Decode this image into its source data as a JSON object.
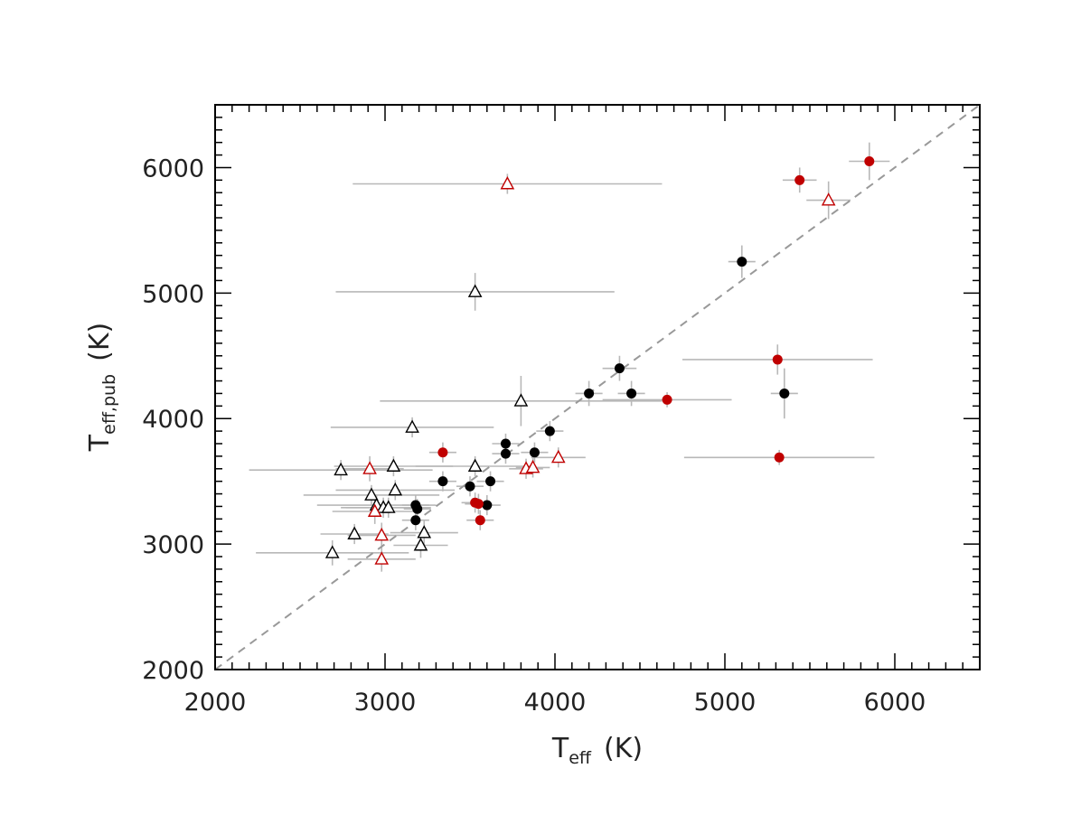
{
  "chart_data": {
    "type": "scatter",
    "title": "",
    "xlabel": "T",
    "xlabel_sub": "eff",
    "xlabel_unit": "(K)",
    "ylabel": "T",
    "ylabel_sub": "eff,pub",
    "ylabel_unit": "(K)",
    "xlim": [
      2000,
      6500
    ],
    "ylim": [
      2000,
      6500
    ],
    "xticks": [
      2000,
      3000,
      4000,
      5000,
      6000
    ],
    "yticks": [
      2000,
      3000,
      4000,
      5000,
      6000
    ],
    "grid": false,
    "reference_line": {
      "style": "dashed",
      "from": [
        2000,
        2000
      ],
      "to": [
        6500,
        6500
      ],
      "color": "#999999"
    },
    "colors": {
      "black": "#000000",
      "red": "#c00000",
      "errorbar": "#b8b8b8"
    },
    "series": [
      {
        "marker": "filled-circle",
        "color": "#000000",
        "points": [
          {
            "x": 5100,
            "y": 5250,
            "xerr": 80,
            "yerr": 130
          },
          {
            "x": 4380,
            "y": 4400,
            "xerr": 100,
            "yerr": 100
          },
          {
            "x": 4200,
            "y": 4200,
            "xerr": 80,
            "yerr": 100
          },
          {
            "x": 4450,
            "y": 4200,
            "xerr": 80,
            "yerr": 100
          },
          {
            "x": 5350,
            "y": 4200,
            "xerr": 80,
            "yerr": 200
          },
          {
            "x": 3970,
            "y": 3900,
            "xerr": 80,
            "yerr": 80
          },
          {
            "x": 3710,
            "y": 3800,
            "xerr": 80,
            "yerr": 80
          },
          {
            "x": 3710,
            "y": 3720,
            "xerr": 80,
            "yerr": 80
          },
          {
            "x": 3880,
            "y": 3730,
            "xerr": 80,
            "yerr": 80
          },
          {
            "x": 3340,
            "y": 3500,
            "xerr": 80,
            "yerr": 80
          },
          {
            "x": 3500,
            "y": 3460,
            "xerr": 80,
            "yerr": 80
          },
          {
            "x": 3620,
            "y": 3500,
            "xerr": 80,
            "yerr": 80
          },
          {
            "x": 3600,
            "y": 3310,
            "xerr": 80,
            "yerr": 80
          },
          {
            "x": 3180,
            "y": 3310,
            "xerr": 80,
            "yerr": 80
          },
          {
            "x": 3190,
            "y": 3280,
            "xerr": 80,
            "yerr": 80
          },
          {
            "x": 3180,
            "y": 3190,
            "xerr": 80,
            "yerr": 80
          }
        ]
      },
      {
        "marker": "filled-circle",
        "color": "#c00000",
        "points": [
          {
            "x": 5850,
            "y": 6050,
            "xerr": 120,
            "yerr": 150
          },
          {
            "x": 5440,
            "y": 5900,
            "xerr": 100,
            "yerr": 100
          },
          {
            "x": 5310,
            "y": 4470,
            "xerr": 560,
            "yerr": 120
          },
          {
            "x": 4660,
            "y": 4150,
            "xerr": 380,
            "yerr": 60
          },
          {
            "x": 5320,
            "y": 3690,
            "xerr": 560,
            "yerr": 60
          },
          {
            "x": 3340,
            "y": 3730,
            "xerr": 80,
            "yerr": 80
          },
          {
            "x": 3530,
            "y": 3330,
            "xerr": 80,
            "yerr": 80
          },
          {
            "x": 3550,
            "y": 3320,
            "xerr": 80,
            "yerr": 80
          },
          {
            "x": 3560,
            "y": 3190,
            "xerr": 80,
            "yerr": 80
          }
        ]
      },
      {
        "marker": "open-triangle",
        "color": "#000000",
        "points": [
          {
            "x": 3530,
            "y": 5010,
            "xerr": 820,
            "yerr": 150
          },
          {
            "x": 3800,
            "y": 4140,
            "xerr": 830,
            "yerr": 200
          },
          {
            "x": 3160,
            "y": 3930,
            "xerr": 480,
            "yerr": 80
          },
          {
            "x": 2740,
            "y": 3590,
            "xerr": 540,
            "yerr": 80
          },
          {
            "x": 3050,
            "y": 3620,
            "xerr": 350,
            "yerr": 80
          },
          {
            "x": 3530,
            "y": 3620,
            "xerr": 350,
            "yerr": 80
          },
          {
            "x": 3060,
            "y": 3430,
            "xerr": 350,
            "yerr": 80
          },
          {
            "x": 2920,
            "y": 3390,
            "xerr": 400,
            "yerr": 80
          },
          {
            "x": 2950,
            "y": 3310,
            "xerr": 350,
            "yerr": 80
          },
          {
            "x": 2990,
            "y": 3290,
            "xerr": 250,
            "yerr": 80
          },
          {
            "x": 3020,
            "y": 3290,
            "xerr": 250,
            "yerr": 80
          },
          {
            "x": 3230,
            "y": 3090,
            "xerr": 200,
            "yerr": 100
          },
          {
            "x": 2820,
            "y": 3080,
            "xerr": 200,
            "yerr": 80
          },
          {
            "x": 3210,
            "y": 2990,
            "xerr": 160,
            "yerr": 100
          },
          {
            "x": 2690,
            "y": 2930,
            "xerr": 450,
            "yerr": 100
          }
        ]
      },
      {
        "marker": "open-triangle",
        "color": "#c00000",
        "points": [
          {
            "x": 3720,
            "y": 5870,
            "xerr": 910,
            "yerr": 80
          },
          {
            "x": 5610,
            "y": 5740,
            "xerr": 130,
            "yerr": 150
          },
          {
            "x": 4020,
            "y": 3690,
            "xerr": 160,
            "yerr": 80
          },
          {
            "x": 3830,
            "y": 3600,
            "xerr": 100,
            "yerr": 80
          },
          {
            "x": 3870,
            "y": 3610,
            "xerr": 100,
            "yerr": 80
          },
          {
            "x": 2910,
            "y": 3600,
            "xerr": 200,
            "yerr": 100
          },
          {
            "x": 2940,
            "y": 3260,
            "xerr": 250,
            "yerr": 100
          },
          {
            "x": 2980,
            "y": 3070,
            "xerr": 200,
            "yerr": 100
          },
          {
            "x": 2980,
            "y": 2880,
            "xerr": 200,
            "yerr": 100
          }
        ]
      }
    ]
  }
}
